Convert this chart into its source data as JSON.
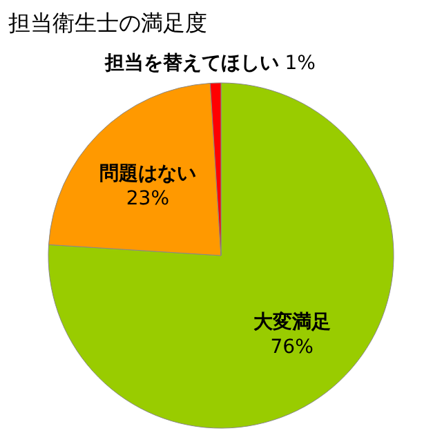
{
  "chart_data": {
    "type": "pie",
    "title": "担当衛生士の満足度",
    "categories": [
      "大変満足",
      "問題はない",
      "担当を替えてほしい"
    ],
    "values": [
      76,
      23,
      1
    ],
    "colors": [
      "#99cc00",
      "#ff9900",
      "#ff0000"
    ],
    "value_labels": [
      "76%",
      "23%",
      "1%"
    ]
  }
}
